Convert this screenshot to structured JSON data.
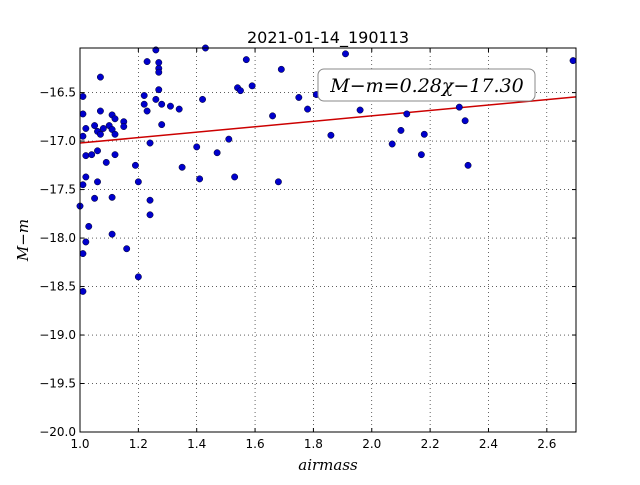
{
  "chart_data": {
    "type": "scatter",
    "title": "2021-01-14_190113",
    "xlabel": "airmass",
    "ylabel": "M−m",
    "xlim": [
      1.0,
      2.7
    ],
    "ylim": [
      -20.0,
      -16.04
    ],
    "y_inverted": true,
    "grid": true,
    "x_ticks": [
      1.0,
      1.2,
      1.4,
      1.6,
      1.8,
      2.0,
      2.2,
      2.4,
      2.6
    ],
    "x_tick_labels": [
      "1.0",
      "1.2",
      "1.4",
      "1.6",
      "1.8",
      "2.0",
      "2.2",
      "2.4",
      "2.6"
    ],
    "y_ticks": [
      -16.5,
      -17.0,
      -17.5,
      -18.0,
      -18.5,
      -19.0,
      -19.5,
      -20.0
    ],
    "y_tick_labels": [
      "−16.5",
      "−17.0",
      "−17.5",
      "−18.0",
      "−18.5",
      "−19.0",
      "−19.5",
      "−20.0"
    ],
    "fit": {
      "slope": 0.28,
      "intercept": -17.3,
      "label": "M−m=0.28χ−17.30"
    },
    "colors": {
      "points": "#0000cc",
      "fit_line": "#cc0000"
    },
    "points": [
      [
        1.01,
        -16.54
      ],
      [
        1.01,
        -16.72
      ],
      [
        1.01,
        -16.95
      ],
      [
        1.0,
        -17.67
      ],
      [
        1.01,
        -18.55
      ],
      [
        1.02,
        -16.87
      ],
      [
        1.02,
        -17.15
      ],
      [
        1.02,
        -17.37
      ],
      [
        1.01,
        -17.45
      ],
      [
        1.02,
        -18.04
      ],
      [
        1.01,
        -18.16
      ],
      [
        1.03,
        -17.88
      ],
      [
        1.04,
        -17.14
      ],
      [
        1.05,
        -16.84
      ],
      [
        1.05,
        -17.59
      ],
      [
        1.06,
        -16.9
      ],
      [
        1.06,
        -17.1
      ],
      [
        1.06,
        -17.42
      ],
      [
        1.07,
        -16.34
      ],
      [
        1.07,
        -16.69
      ],
      [
        1.08,
        -16.87
      ],
      [
        1.07,
        -16.93
      ],
      [
        1.09,
        -17.22
      ],
      [
        1.1,
        -16.84
      ],
      [
        1.11,
        -16.88
      ],
      [
        1.11,
        -16.73
      ],
      [
        1.12,
        -16.77
      ],
      [
        1.11,
        -17.58
      ],
      [
        1.11,
        -17.96
      ],
      [
        1.12,
        -16.93
      ],
      [
        1.12,
        -17.14
      ],
      [
        1.15,
        -16.8
      ],
      [
        1.15,
        -16.85
      ],
      [
        1.16,
        -18.11
      ],
      [
        1.19,
        -17.25
      ],
      [
        1.2,
        -17.42
      ],
      [
        1.2,
        -18.4
      ],
      [
        1.22,
        -16.53
      ],
      [
        1.22,
        -16.62
      ],
      [
        1.23,
        -16.69
      ],
      [
        1.23,
        -16.18
      ],
      [
        1.24,
        -17.02
      ],
      [
        1.24,
        -17.61
      ],
      [
        1.24,
        -17.76
      ],
      [
        1.26,
        -16.06
      ],
      [
        1.26,
        -16.57
      ],
      [
        1.27,
        -16.19
      ],
      [
        1.27,
        -16.25
      ],
      [
        1.27,
        -16.29
      ],
      [
        1.27,
        -16.47
      ],
      [
        1.28,
        -16.62
      ],
      [
        1.28,
        -16.83
      ],
      [
        1.31,
        -16.64
      ],
      [
        1.34,
        -16.67
      ],
      [
        1.35,
        -17.27
      ],
      [
        1.4,
        -17.06
      ],
      [
        1.41,
        -17.39
      ],
      [
        1.42,
        -16.57
      ],
      [
        1.43,
        -16.02
      ],
      [
        1.47,
        -17.12
      ],
      [
        1.51,
        -16.98
      ],
      [
        1.53,
        -17.37
      ],
      [
        1.54,
        -16.45
      ],
      [
        1.55,
        -16.48
      ],
      [
        1.57,
        -16.16
      ],
      [
        1.59,
        -16.43
      ],
      [
        1.66,
        -16.74
      ],
      [
        1.68,
        -17.42
      ],
      [
        1.69,
        -16.26
      ],
      [
        1.75,
        -16.55
      ],
      [
        1.78,
        -16.67
      ],
      [
        1.81,
        -16.52
      ],
      [
        1.86,
        -16.94
      ],
      [
        1.91,
        -16.1
      ],
      [
        1.96,
        -16.68
      ],
      [
        2.07,
        -17.03
      ],
      [
        2.1,
        -16.89
      ],
      [
        2.12,
        -16.72
      ],
      [
        2.17,
        -17.14
      ],
      [
        2.18,
        -16.93
      ],
      [
        2.3,
        -16.65
      ],
      [
        2.32,
        -16.79
      ],
      [
        2.33,
        -17.25
      ],
      [
        2.69,
        -16.17
      ]
    ]
  }
}
